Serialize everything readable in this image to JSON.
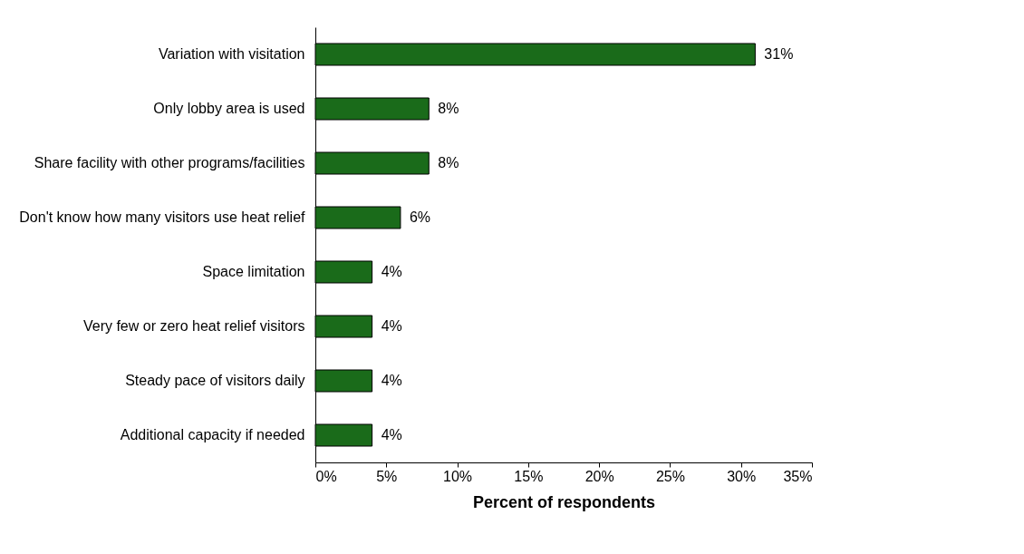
{
  "chart_data": {
    "type": "bar",
    "orientation": "horizontal",
    "xlabel": "Percent of respondents",
    "categories": [
      "Variation with visitation",
      "Only lobby area is used",
      "Share facility with other programs/facilities",
      "Don't know how many visitors use heat relief",
      "Space limitation",
      "Very few or zero heat relief visitors",
      "Steady pace of visitors daily",
      "Additional capacity if needed"
    ],
    "values": [
      31,
      8,
      8,
      6,
      4,
      4,
      4,
      4
    ],
    "value_labels": [
      "31%",
      "8%",
      "8%",
      "6%",
      "4%",
      "4%",
      "4%",
      "4%"
    ],
    "color": "#1a6b1a",
    "xlim": [
      0,
      35
    ],
    "xticks": [
      {
        "value": 0,
        "label": "0%"
      },
      {
        "value": 5,
        "label": "5%"
      },
      {
        "value": 10,
        "label": "10%"
      },
      {
        "value": 15,
        "label": "15%"
      },
      {
        "value": 20,
        "label": "20%"
      },
      {
        "value": 25,
        "label": "25%"
      },
      {
        "value": 30,
        "label": "30%"
      },
      {
        "value": 35,
        "label": "35%"
      }
    ],
    "grid": false
  }
}
